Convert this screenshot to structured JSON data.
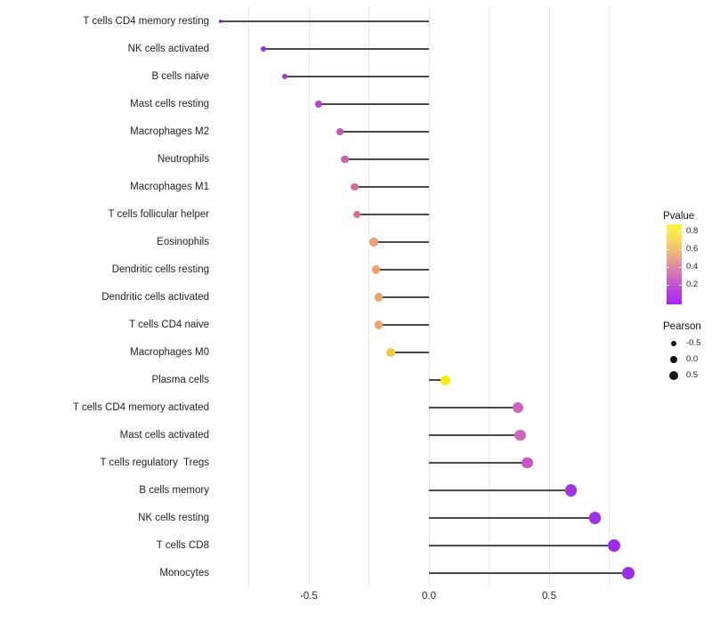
{
  "chart_data": {
    "type": "scatter",
    "subtype": "lollipop",
    "title": "",
    "xlabel": "",
    "ylabel": "",
    "x_axis": {
      "tick_labels": [
        "-0.5",
        "0.0",
        "0.5"
      ],
      "tick_values": [
        -0.5,
        0.0,
        0.5
      ],
      "gridline_values": [
        -0.75,
        -0.5,
        -0.25,
        0.0,
        0.25,
        0.5,
        0.75
      ],
      "xlim": [
        -0.9,
        0.92
      ]
    },
    "points": [
      {
        "label": "T cells CD4 memory resting",
        "pearson": -0.87,
        "pvalue": 0.01,
        "color": "#8E2BD1",
        "radius": 1.6
      },
      {
        "label": "NK cells activated",
        "pearson": -0.69,
        "pvalue": 0.05,
        "color": "#9832D6",
        "radius": 2.9
      },
      {
        "label": "B cells naive",
        "pearson": -0.6,
        "pvalue": 0.1,
        "color": "#A23AD2",
        "radius": 3.2
      },
      {
        "label": "Mast cells resting",
        "pearson": -0.46,
        "pvalue": 0.15,
        "color": "#AE46C9",
        "radius": 3.9
      },
      {
        "label": "Macrophages M2",
        "pearson": -0.37,
        "pvalue": 0.3,
        "color": "#C158B1",
        "radius": 4.2
      },
      {
        "label": "Neutrophils",
        "pearson": -0.35,
        "pvalue": 0.33,
        "color": "#C962AB",
        "radius": 4.3
      },
      {
        "label": "Macrophages M1",
        "pearson": -0.31,
        "pvalue": 0.4,
        "color": "#D0709F",
        "radius": 4.4
      },
      {
        "label": "T cells follicular helper",
        "pearson": -0.3,
        "pvalue": 0.42,
        "color": "#D1739D",
        "radius": 4.4
      },
      {
        "label": "Eosinophils",
        "pearson": -0.23,
        "pvalue": 0.55,
        "color": "#E7A273",
        "radius": 4.7
      },
      {
        "label": "Dendritic cells resting",
        "pearson": -0.22,
        "pvalue": 0.56,
        "color": "#E8A471",
        "radius": 4.7
      },
      {
        "label": "Dendritic cells activated",
        "pearson": -0.21,
        "pvalue": 0.57,
        "color": "#E9A76E",
        "radius": 4.8
      },
      {
        "label": "T cells CD4 naive",
        "pearson": -0.21,
        "pvalue": 0.57,
        "color": "#E9A76E",
        "radius": 4.8
      },
      {
        "label": "Macrophages M0",
        "pearson": -0.16,
        "pvalue": 0.67,
        "color": "#F0C84E",
        "radius": 4.9
      },
      {
        "label": "Plasma cells",
        "pearson": 0.07,
        "pvalue": 0.85,
        "color": "#F8EC15",
        "radius": 5.5
      },
      {
        "label": "T cells CD4 memory activated",
        "pearson": 0.37,
        "pvalue": 0.28,
        "color": "#CB66BC",
        "radius": 6.2
      },
      {
        "label": "Mast cells activated",
        "pearson": 0.38,
        "pvalue": 0.29,
        "color": "#CC68BA",
        "radius": 6.2
      },
      {
        "label": "T cells regulatory  Tregs",
        "pearson": 0.41,
        "pvalue": 0.22,
        "color": "#C557C5",
        "radius": 6.3
      },
      {
        "label": "B cells memory",
        "pearson": 0.59,
        "pvalue": 0.08,
        "color": "#A136DC",
        "radius": 6.6
      },
      {
        "label": "NK cells resting",
        "pearson": 0.69,
        "pvalue": 0.05,
        "color": "#9D30E2",
        "radius": 6.8
      },
      {
        "label": "T cells CD8",
        "pearson": 0.77,
        "pvalue": 0.04,
        "color": "#9B2EE5",
        "radius": 7.0
      },
      {
        "label": "Monocytes",
        "pearson": 0.83,
        "pvalue": 0.03,
        "color": "#9D2EE8",
        "radius": 7.2
      }
    ],
    "legend_pvalue": {
      "title": "Pvalue",
      "tick_labels": [
        "0.8",
        "0.6",
        "0.4",
        "0.2"
      ],
      "tick_values": [
        0.8,
        0.6,
        0.4,
        0.2
      ],
      "bar_range": [
        0.88,
        -0.02
      ],
      "gradient_top_color": "#FCF43D",
      "gradient_bottom_color": "#A825F2"
    },
    "legend_pearson": {
      "title": "Pearson",
      "entries": [
        {
          "label": "-0.5",
          "radius": 3.2
        },
        {
          "label": "0.0",
          "radius": 4.3
        },
        {
          "label": "0.5",
          "radius": 5.4
        }
      ],
      "dot_color": "#141414"
    },
    "style": {
      "stem_color": "#4a4a4a",
      "gridline_color": "#e7e7e7",
      "background": "#ffffff"
    }
  }
}
